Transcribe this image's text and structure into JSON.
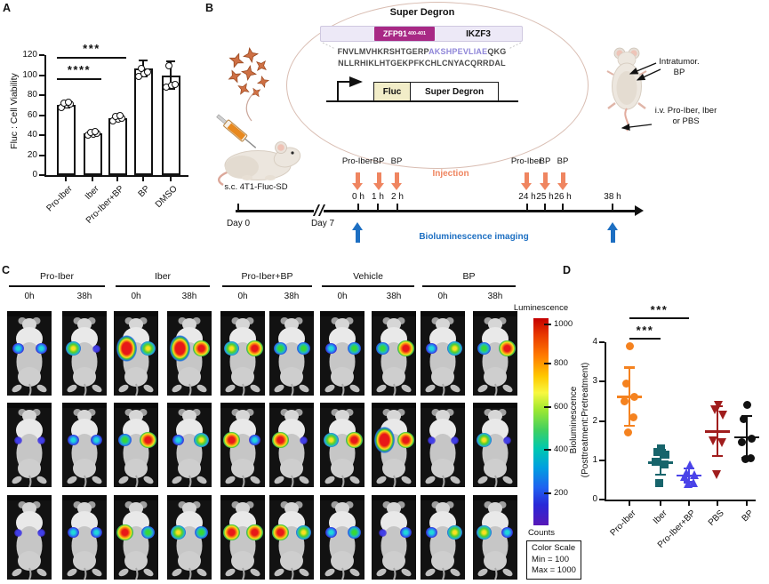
{
  "panelA": {
    "label": "A",
    "chart": {
      "type": "bar",
      "ylabel": "Fluc : Cell Viability",
      "categories": [
        "Pro-Iber",
        "Iber",
        "Pro-Iber+BP",
        "BP",
        "DMSO"
      ],
      "values": [
        70,
        42,
        57,
        107,
        100
      ],
      "errors": [
        3,
        2.5,
        3,
        9,
        15
      ],
      "points": [
        [
          68,
          70,
          71,
          72,
          73
        ],
        [
          40,
          41,
          42,
          43,
          44
        ],
        [
          54,
          56,
          57,
          59,
          60
        ],
        [
          99,
          101,
          103,
          107
        ],
        [
          88,
          90,
          91,
          109
        ]
      ],
      "yticks": [
        0,
        20,
        40,
        60,
        80,
        100,
        120
      ],
      "ylim": [
        0,
        120
      ],
      "bar_fill": "#ffffff",
      "bar_stroke": "#111111",
      "significance": [
        {
          "text": "***",
          "from": 0,
          "to": 2,
          "y": 118
        },
        {
          "text": "****",
          "from": 0,
          "to": 1,
          "y": 97
        }
      ]
    }
  },
  "panelB": {
    "label": "B",
    "callout_title": "Super Degron",
    "zfp91_label": "ZFP91",
    "zfp91_subscript": "400-401",
    "ikzf3_label": "IKZF3",
    "zfp91_color": "#A82985",
    "sequence_line1_pre": "FNVLMVHKRSHTGERP",
    "sequence_line1_highlight": "AKSHPEVLIAE",
    "sequence_line1_post": "QKG",
    "sequence_line2": "NLLRHIKLHTGEKPFKCHLCNYACQRRDAL",
    "sequence_highlight_color": "#8F86D8",
    "construct_fluc": "Fluc",
    "construct_degron": "Super Degron",
    "sc_injection_label": "s.c. 4T1-Fluc-SD",
    "intratumor_line1": "Intratumor.",
    "intratumor_line2": "BP",
    "iv_line1": "i.v. Pro-Iber, Iber",
    "iv_line2": "or PBS",
    "timeline": {
      "day_labels": [
        "Day 0",
        "Day 7"
      ],
      "hour_labels": [
        "0 h",
        "1 h",
        "2 h",
        "24 h",
        "25 h",
        "26 h",
        "38 h"
      ],
      "injection_arrow_labels": [
        "Pro-Iber",
        "BP",
        "BP"
      ],
      "injection_caption": "Injection",
      "imaging_caption": "Bioluminescence imaging",
      "injection_color": "#EF8560",
      "imaging_color": "#1D6FC2"
    }
  },
  "panelC": {
    "label": "C",
    "group_names": [
      "Pro-Iber",
      "Iber",
      "Pro-Iber+BP",
      "Vehicle",
      "BP"
    ],
    "timepoints": [
      "0h",
      "38h"
    ],
    "colorbar": {
      "title": "Luminescence",
      "tick_values": [
        "1000",
        "800",
        "600",
        "400",
        "200"
      ],
      "unit_label": "Counts",
      "scale_box_lines": [
        "Color Scale",
        "Min = 100",
        "Max = 1000"
      ]
    },
    "tile_spots": [
      [
        [
          2,
          2
        ],
        [
          4,
          1
        ],
        [
          6,
          4
        ],
        [
          6,
          5
        ],
        [
          4,
          5
        ],
        [
          3,
          3
        ],
        [
          2,
          3
        ],
        [
          3,
          5
        ],
        [
          2,
          4
        ],
        [
          3,
          5
        ]
      ],
      [
        [
          1,
          1
        ],
        [
          2,
          2
        ],
        [
          3,
          5
        ],
        [
          2,
          4
        ],
        [
          5,
          2
        ],
        [
          5,
          1
        ],
        [
          4,
          5
        ],
        [
          6,
          5
        ],
        [
          1,
          1
        ],
        [
          4,
          1
        ]
      ],
      [
        [
          1,
          1
        ],
        [
          2,
          2
        ],
        [
          5,
          3
        ],
        [
          4,
          3
        ],
        [
          5,
          5
        ],
        [
          5,
          4
        ],
        [
          2,
          3
        ],
        [
          1,
          2
        ],
        [
          2,
          4
        ],
        [
          4,
          2
        ]
      ]
    ]
  },
  "panelD": {
    "label": "D",
    "chart": {
      "type": "scatter",
      "ylabel_line1": "Bioluminescence",
      "ylabel_line2": "(Posttreatment:Pretreatment)",
      "categories": [
        "Pro-Iber",
        "Iber",
        "Pro-Iber+BP",
        "PBS",
        "BP"
      ],
      "yticks": [
        0,
        1,
        2,
        3,
        4
      ],
      "ylim": [
        0,
        4
      ],
      "series": [
        {
          "name": "Pro-Iber",
          "color": "#F5821F",
          "marker": "circle",
          "points": [
            3.9,
            2.95,
            2.6,
            2.5,
            2.1,
            1.7
          ],
          "mean": 2.62,
          "err_low": 1.85,
          "err_high": 3.38
        },
        {
          "name": "Iber",
          "color": "#17646B",
          "marker": "square",
          "points": [
            1.3,
            1.2,
            1.15,
            0.95,
            0.9,
            0.42
          ],
          "mean": 0.95,
          "err_low": 0.62,
          "err_high": 1.28
        },
        {
          "name": "Pro-Iber+BP",
          "color": "#4A43E8",
          "marker": "triangle-up",
          "points": [
            0.9,
            0.7,
            0.65,
            0.6,
            0.45,
            0.42
          ],
          "mean": 0.62,
          "err_low": 0.42,
          "err_high": 0.82
        },
        {
          "name": "PBS",
          "color": "#A01D1D",
          "marker": "triangle-down",
          "points": [
            2.4,
            2.3,
            2.15,
            1.5,
            1.45,
            0.65
          ],
          "mean": 1.74,
          "err_low": 1.08,
          "err_high": 2.4
        },
        {
          "name": "BP",
          "color": "#111111",
          "marker": "circle",
          "points": [
            2.4,
            2.05,
            1.55,
            1.45,
            1.05,
            1.02
          ],
          "mean": 1.59,
          "err_low": 1.03,
          "err_high": 2.15
        }
      ],
      "significance": [
        {
          "text": "***",
          "from": 0,
          "to": 2
        },
        {
          "text": "***",
          "from": 0,
          "to": 1
        }
      ]
    }
  }
}
